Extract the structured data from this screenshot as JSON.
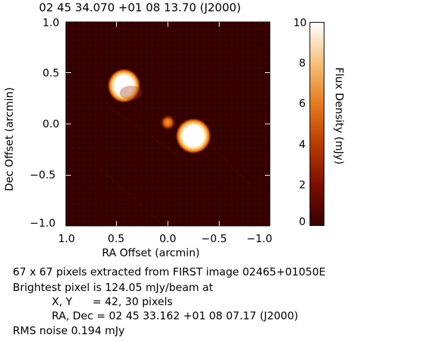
{
  "header": {
    "coords": "02 45 34.070 +01 08 13.70 (J2000)"
  },
  "axes": {
    "x_label": "RA Offset (arcmin)",
    "y_label": "Dec Offset (arcmin)",
    "x_ticks": [
      "1.0",
      "0.5",
      "0.0",
      "−0.5",
      "−1.0"
    ],
    "y_ticks": [
      "1.0",
      "0.5",
      "0.0",
      "−0.5",
      "−1.0"
    ]
  },
  "colorbar": {
    "label": "Flux Density (mJy)",
    "ticks": [
      "10",
      "8",
      "6",
      "4",
      "2",
      "0"
    ]
  },
  "info": {
    "line1": "67 x 67 pixels extracted from FIRST image 02465+01050E",
    "line2": "Brightest pixel is 124.05 mJy/beam at",
    "line3": "X, Y      = 42, 30 pixels",
    "line4": "RA, Dec = 02 45 33.162 +01 08 07.17 (J2000)",
    "line5": "RMS noise 0.194 mJy"
  },
  "colors": {
    "background": "#360000",
    "source_core": "#ffffff",
    "source_halo": "#e06a10"
  }
}
